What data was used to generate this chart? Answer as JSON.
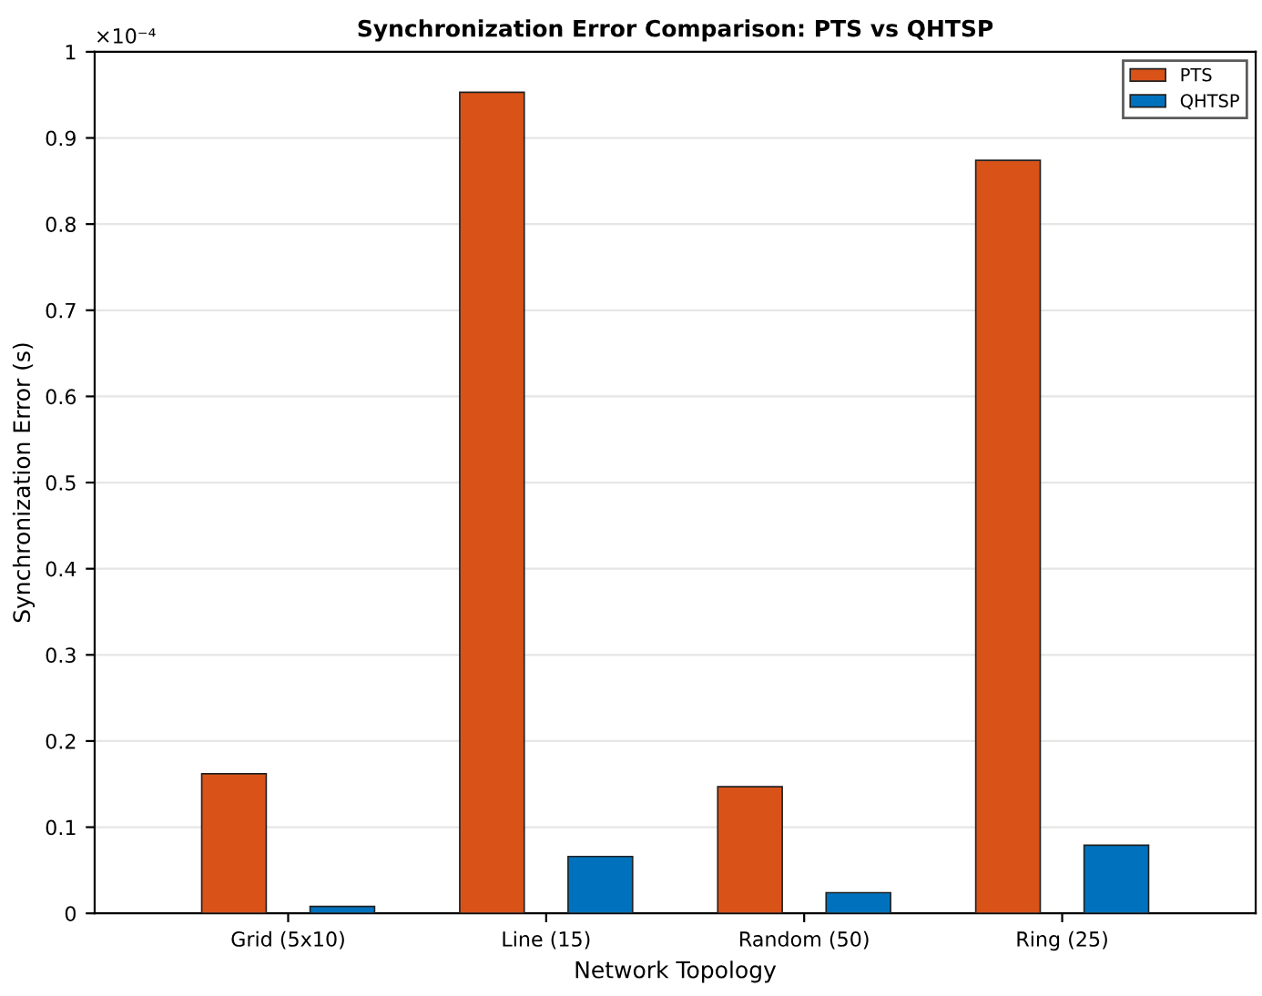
{
  "chart_data": {
    "type": "bar",
    "title": "Synchronization Error Comparison: PTS vs QHTSP",
    "xlabel": "Network Topology",
    "ylabel": "Synchronization Error (s)",
    "categories": [
      "Grid (5x10)",
      "Line (15)",
      "Random (50)",
      "Ring (25)"
    ],
    "series": [
      {
        "name": "PTS",
        "color": "#d95319",
        "values": [
          0.162,
          0.953,
          0.147,
          0.874
        ]
      },
      {
        "name": "QHTSP",
        "color": "#0072bd",
        "values": [
          0.008,
          0.066,
          0.024,
          0.079
        ]
      }
    ],
    "ylim": [
      0,
      1
    ],
    "yticks": [
      0,
      0.1,
      0.2,
      0.3,
      0.4,
      0.5,
      0.6,
      0.7,
      0.8,
      0.9,
      1
    ],
    "annotations": [
      "×10⁻⁴"
    ],
    "grid": "y",
    "legend": "top right"
  }
}
